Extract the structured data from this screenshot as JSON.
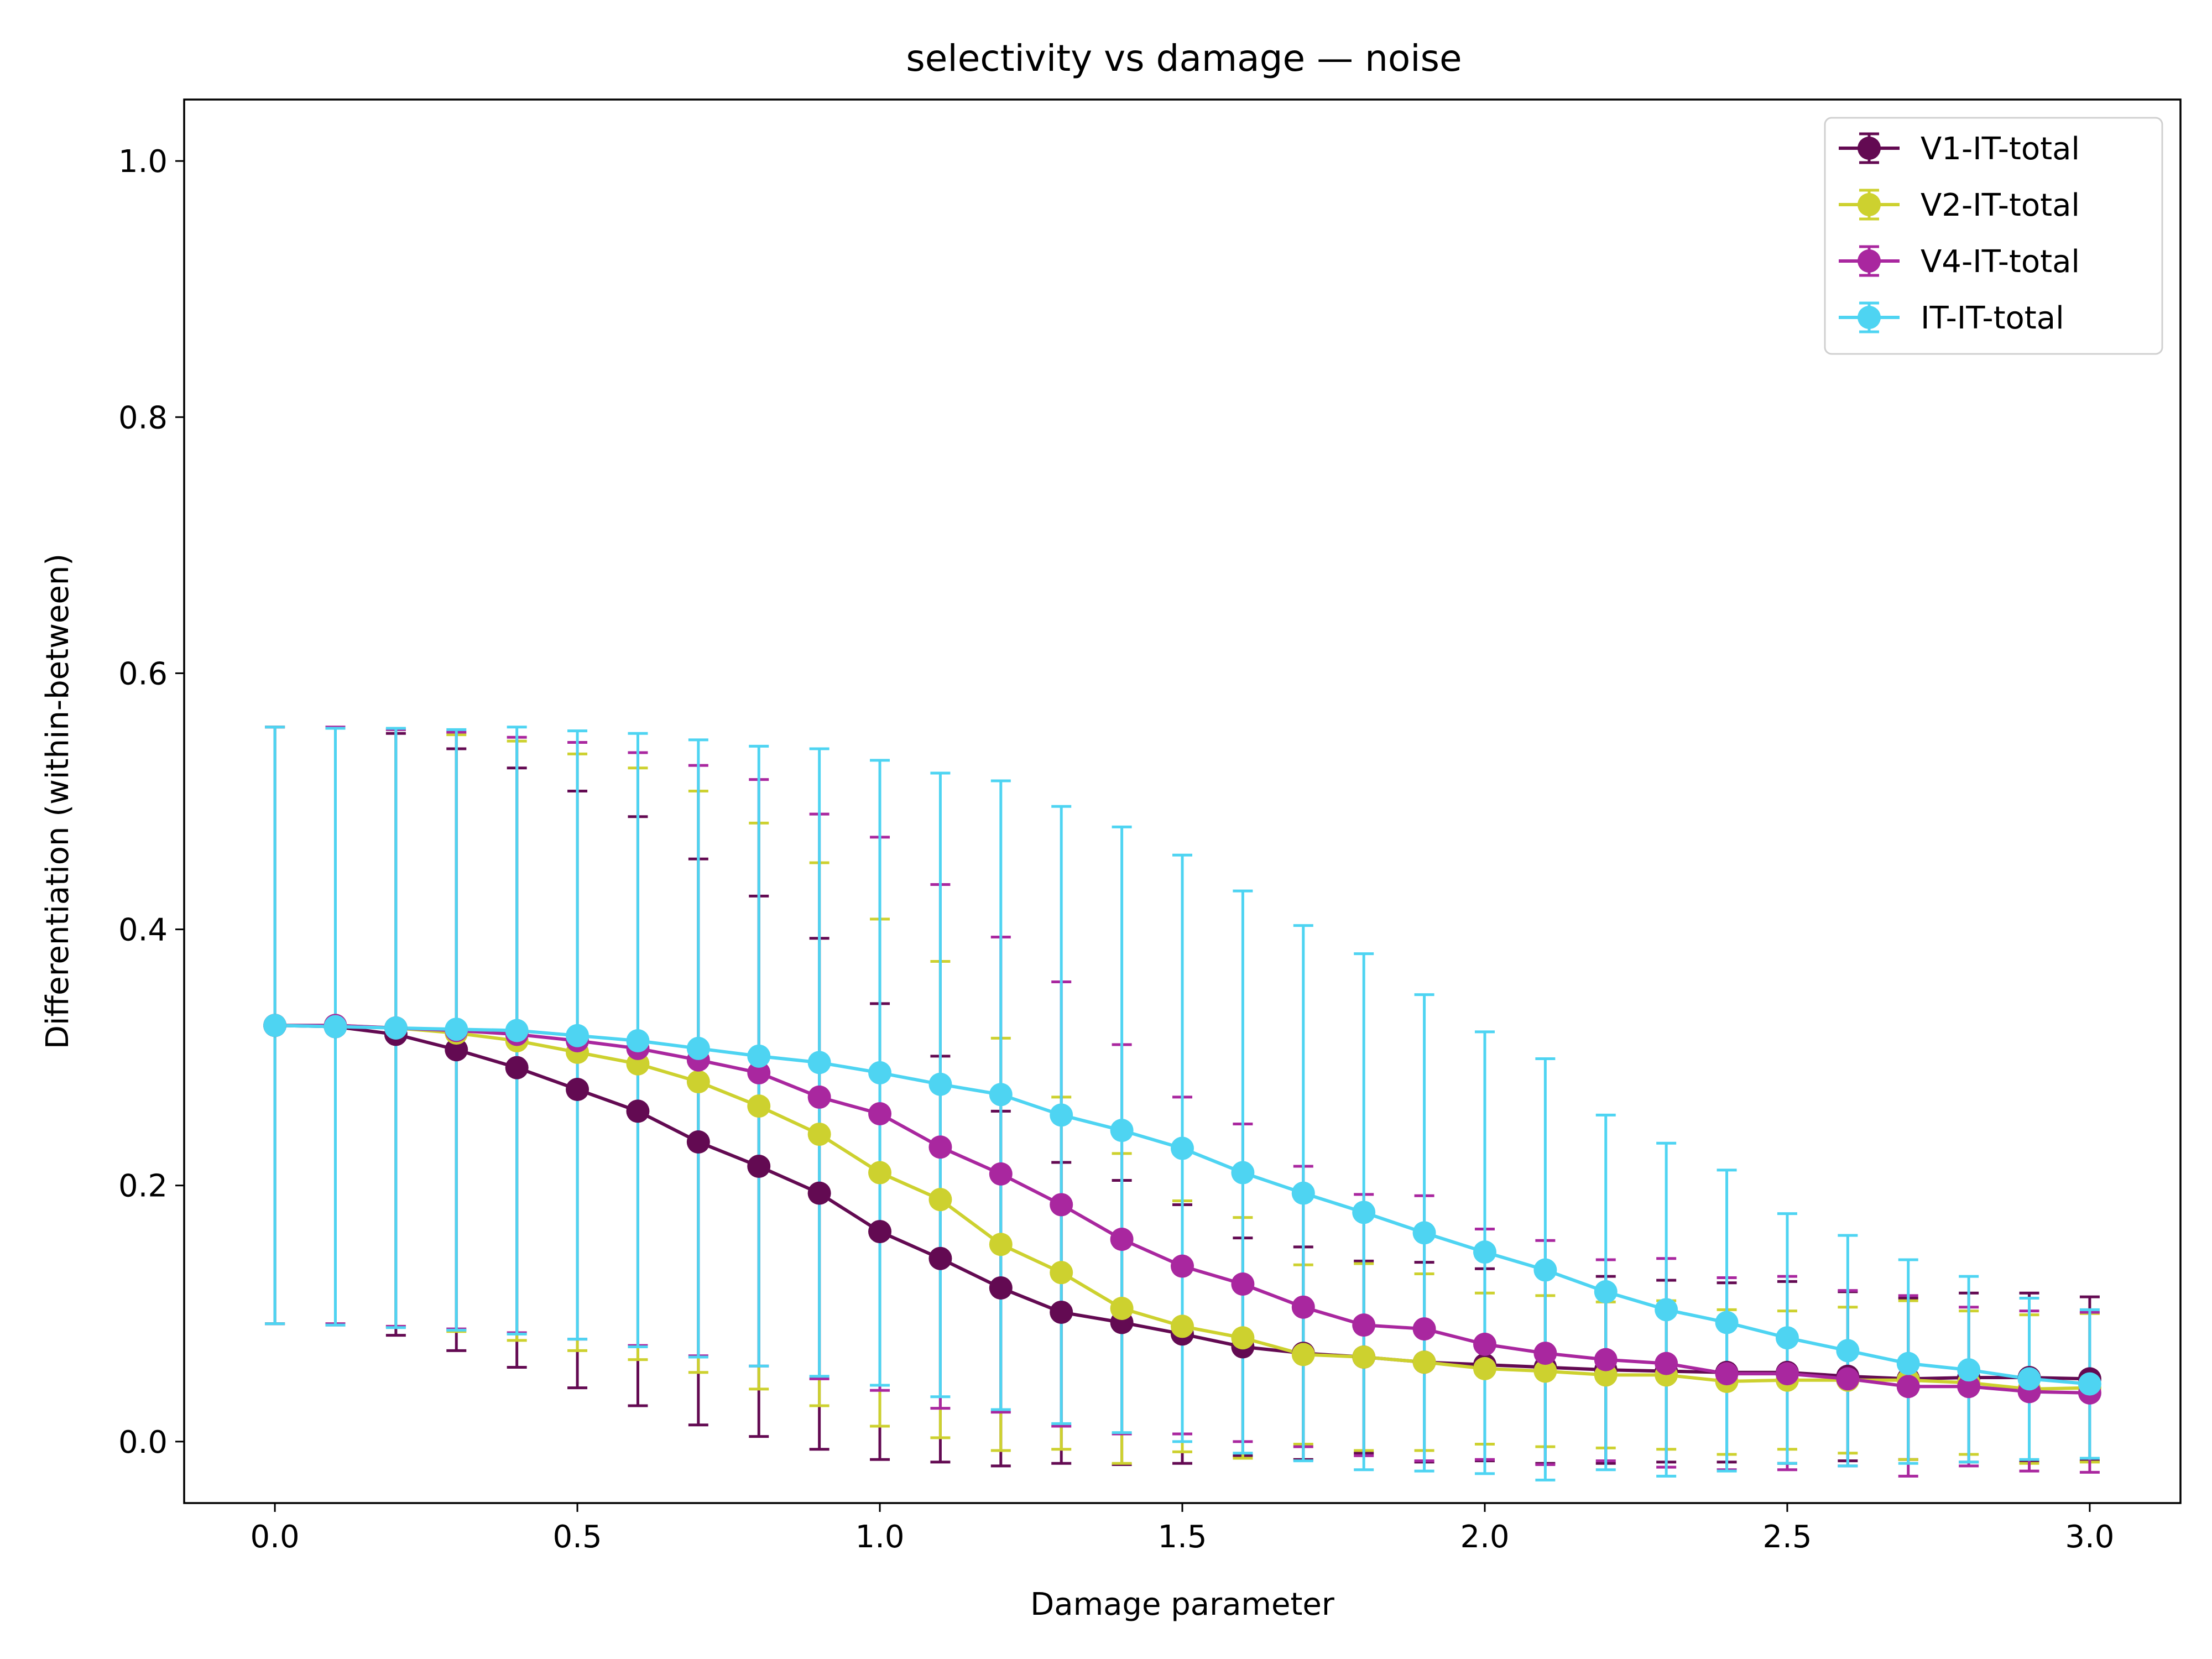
{
  "chart_data": {
    "type": "line",
    "title": "selectivity vs damage — noise",
    "xlabel": "Damage parameter",
    "ylabel": "Differentiation (within-between)",
    "xlim": [
      -0.15,
      3.15
    ],
    "ylim": [
      -0.048,
      1.048
    ],
    "x_ticks": [
      0.0,
      0.5,
      1.0,
      1.5,
      2.0,
      2.5,
      3.0
    ],
    "x_tick_labels": [
      "0.0",
      "0.5",
      "1.0",
      "1.5",
      "2.0",
      "2.5",
      "3.0"
    ],
    "y_ticks": [
      0.0,
      0.2,
      0.4,
      0.6,
      0.8,
      1.0
    ],
    "y_tick_labels": [
      "0.0",
      "0.2",
      "0.4",
      "0.6",
      "0.8",
      "1.0"
    ],
    "grid": false,
    "legend_position": "top-right",
    "x": [
      0.0,
      0.1,
      0.2,
      0.3,
      0.4,
      0.5,
      0.6,
      0.7,
      0.8,
      0.9,
      1.0,
      1.1,
      1.2,
      1.3,
      1.4,
      1.5,
      1.6,
      1.7,
      1.8,
      1.9,
      2.0,
      2.1,
      2.2,
      2.3,
      2.4,
      2.5,
      2.6,
      2.7,
      2.8,
      2.9,
      3.0
    ],
    "series": [
      {
        "name": "V1-IT-total",
        "color": "#630a52",
        "values": [
          0.325,
          0.324,
          0.318,
          0.306,
          0.292,
          0.275,
          0.258,
          0.234,
          0.215,
          0.194,
          0.164,
          0.143,
          0.12,
          0.101,
          0.093,
          0.084,
          0.074,
          0.069,
          0.066,
          0.062,
          0.06,
          0.058,
          0.056,
          0.055,
          0.054,
          0.054,
          0.051,
          0.049,
          0.05,
          0.05,
          0.049
        ],
        "err_upper": [
          0.558,
          0.557,
          0.553,
          0.541,
          0.526,
          0.508,
          0.488,
          0.455,
          0.426,
          0.393,
          0.342,
          0.301,
          0.258,
          0.218,
          0.204,
          0.185,
          0.159,
          0.152,
          0.141,
          0.14,
          0.135,
          0.133,
          0.129,
          0.126,
          0.124,
          0.125,
          0.117,
          0.112,
          0.116,
          0.116,
          0.113
        ],
        "err_lower": [
          0.092,
          0.091,
          0.083,
          0.071,
          0.058,
          0.042,
          0.028,
          0.013,
          0.004,
          -0.006,
          -0.014,
          -0.016,
          -0.019,
          -0.017,
          -0.018,
          -0.017,
          -0.011,
          -0.014,
          -0.009,
          -0.016,
          -0.015,
          -0.017,
          -0.017,
          -0.016,
          -0.016,
          -0.017,
          -0.015,
          -0.014,
          -0.016,
          -0.016,
          -0.015
        ]
      },
      {
        "name": "V2-IT-total",
        "color": "#cdd12f",
        "values": [
          0.325,
          0.325,
          0.323,
          0.319,
          0.313,
          0.304,
          0.295,
          0.281,
          0.262,
          0.24,
          0.21,
          0.189,
          0.154,
          0.132,
          0.104,
          0.09,
          0.081,
          0.068,
          0.066,
          0.062,
          0.057,
          0.055,
          0.052,
          0.052,
          0.047,
          0.048,
          0.048,
          0.048,
          0.046,
          0.041,
          0.042
        ],
        "err_upper": [
          0.558,
          0.557,
          0.556,
          0.552,
          0.547,
          0.537,
          0.526,
          0.508,
          0.483,
          0.452,
          0.408,
          0.375,
          0.315,
          0.269,
          0.225,
          0.188,
          0.175,
          0.138,
          0.139,
          0.131,
          0.116,
          0.114,
          0.109,
          0.11,
          0.103,
          0.102,
          0.105,
          0.11,
          0.102,
          0.099,
          0.1
        ],
        "err_lower": [
          0.092,
          0.092,
          0.09,
          0.086,
          0.079,
          0.071,
          0.064,
          0.054,
          0.041,
          0.028,
          0.012,
          0.003,
          -0.007,
          -0.006,
          -0.017,
          -0.008,
          -0.013,
          -0.002,
          -0.007,
          -0.007,
          -0.002,
          -0.004,
          -0.005,
          -0.006,
          -0.01,
          -0.006,
          -0.009,
          -0.014,
          -0.01,
          -0.017,
          -0.016
        ]
      },
      {
        "name": "V4-IT-total",
        "color": "#a9279f",
        "values": [
          0.325,
          0.325,
          0.323,
          0.321,
          0.318,
          0.313,
          0.307,
          0.298,
          0.288,
          0.269,
          0.256,
          0.23,
          0.209,
          0.185,
          0.158,
          0.137,
          0.123,
          0.105,
          0.091,
          0.088,
          0.076,
          0.069,
          0.064,
          0.061,
          0.053,
          0.053,
          0.049,
          0.043,
          0.043,
          0.039,
          0.038
        ],
        "err_upper": [
          0.558,
          0.558,
          0.556,
          0.554,
          0.55,
          0.546,
          0.538,
          0.528,
          0.517,
          0.49,
          0.472,
          0.435,
          0.394,
          0.359,
          0.31,
          0.269,
          0.248,
          0.215,
          0.193,
          0.192,
          0.166,
          0.157,
          0.142,
          0.143,
          0.128,
          0.129,
          0.118,
          0.114,
          0.105,
          0.102,
          0.101
        ],
        "err_lower": [
          0.092,
          0.092,
          0.09,
          0.088,
          0.085,
          0.08,
          0.075,
          0.067,
          0.059,
          0.049,
          0.04,
          0.026,
          0.023,
          0.012,
          0.006,
          0.006,
          0.0,
          -0.004,
          -0.011,
          -0.015,
          -0.014,
          -0.018,
          -0.015,
          -0.02,
          -0.022,
          -0.022,
          -0.019,
          -0.027,
          -0.019,
          -0.023,
          -0.024
        ]
      },
      {
        "name": "IT-IT-total",
        "color": "#4ed4f2",
        "values": [
          0.325,
          0.324,
          0.323,
          0.322,
          0.321,
          0.317,
          0.313,
          0.307,
          0.301,
          0.296,
          0.288,
          0.279,
          0.271,
          0.255,
          0.243,
          0.229,
          0.21,
          0.194,
          0.179,
          0.163,
          0.148,
          0.134,
          0.117,
          0.103,
          0.093,
          0.081,
          0.071,
          0.061,
          0.056,
          0.049,
          0.045
        ],
        "err_upper": [
          0.558,
          0.557,
          0.557,
          0.556,
          0.558,
          0.555,
          0.553,
          0.548,
          0.543,
          0.541,
          0.532,
          0.522,
          0.516,
          0.496,
          0.48,
          0.458,
          0.43,
          0.403,
          0.381,
          0.349,
          0.32,
          0.299,
          0.255,
          0.233,
          0.212,
          0.178,
          0.161,
          0.142,
          0.129,
          0.112,
          0.103
        ],
        "err_lower": [
          0.092,
          0.091,
          0.089,
          0.087,
          0.084,
          0.08,
          0.074,
          0.066,
          0.059,
          0.051,
          0.044,
          0.035,
          0.025,
          0.014,
          0.007,
          0.0,
          -0.009,
          -0.015,
          -0.022,
          -0.023,
          -0.025,
          -0.03,
          -0.022,
          -0.027,
          -0.023,
          -0.017,
          -0.019,
          -0.017,
          -0.016,
          -0.014,
          -0.013
        ]
      }
    ]
  }
}
